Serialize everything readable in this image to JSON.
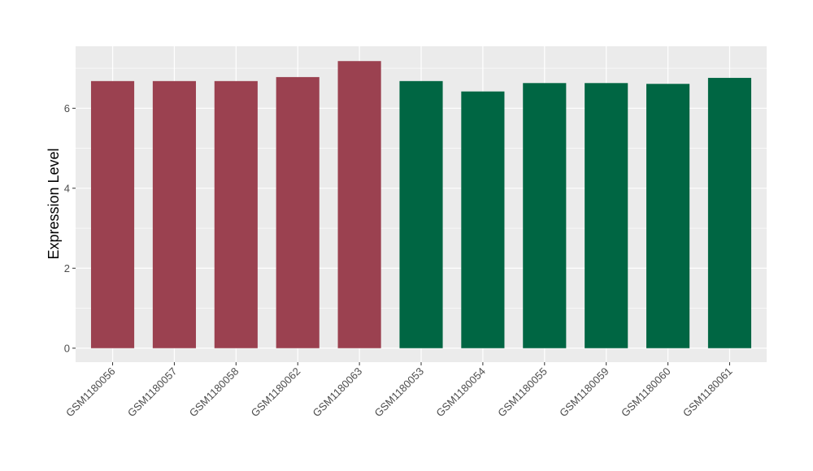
{
  "chart_data": {
    "type": "bar",
    "title": "",
    "xlabel": "",
    "ylabel": "Expression Level",
    "categories": [
      "GSM1180056",
      "GSM1180057",
      "GSM1180058",
      "GSM1180062",
      "GSM1180063",
      "GSM1180053",
      "GSM1180054",
      "GSM1180055",
      "GSM1180059",
      "GSM1180060",
      "GSM1180061"
    ],
    "values": [
      6.68,
      6.68,
      6.68,
      6.78,
      7.18,
      6.68,
      6.42,
      6.63,
      6.63,
      6.61,
      6.76
    ],
    "bar_colors": [
      "#9b4150",
      "#9b4150",
      "#9b4150",
      "#9b4150",
      "#9b4150",
      "#006643",
      "#006643",
      "#006643",
      "#006643",
      "#006643",
      "#006643"
    ],
    "ylim": [
      -0.35,
      7.55
    ],
    "yticks": [
      0,
      2,
      4,
      6
    ],
    "grid": true,
    "panel_background": "#ebebeb",
    "legend": "none"
  }
}
